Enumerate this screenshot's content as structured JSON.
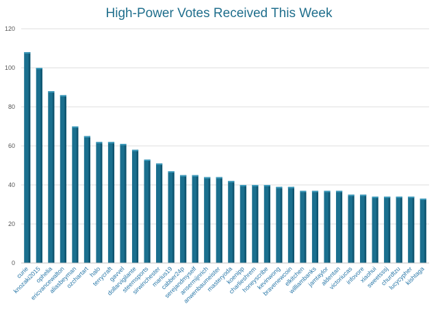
{
  "chart_data": {
    "type": "bar",
    "title": "High-Power Votes Received This Week",
    "xlabel": "",
    "ylabel": "",
    "ylim": [
      0,
      120
    ],
    "yticks": [
      0,
      20,
      40,
      60,
      80,
      100,
      120
    ],
    "grid": true,
    "bar_color": "#1a6f8e",
    "categories": [
      "curie",
      "knozaki2015",
      "ophelia",
      "ericvancewalton",
      "aliasbeyman",
      "ozchartart",
      "halo",
      "terrycraft",
      "gavvel",
      "dollarvigilante",
      "steemsports",
      "sirwinchester",
      "marius19",
      "cabber24p",
      "serejandmyself",
      "ansermijnrich",
      "anwenbaumeister",
      "masteryoda",
      "koenipp",
      "charlieshrem",
      "honeyscribe",
      "kevinwong",
      "bravenewcoin",
      "elkitchen",
      "williambanks",
      "jamtaylor",
      "aldentan",
      "victoriucas",
      "infovore",
      "xiaohui",
      "sweetsssj",
      "churdtzu",
      "lucycypher",
      "kishtaga"
    ],
    "values": [
      108,
      100,
      88,
      86,
      70,
      65,
      62,
      62,
      61,
      58,
      53,
      51,
      47,
      45,
      45,
      44,
      44,
      42,
      40,
      40,
      40,
      39,
      39,
      37,
      37,
      37,
      37,
      35,
      35,
      34,
      34,
      34,
      34,
      33
    ]
  }
}
